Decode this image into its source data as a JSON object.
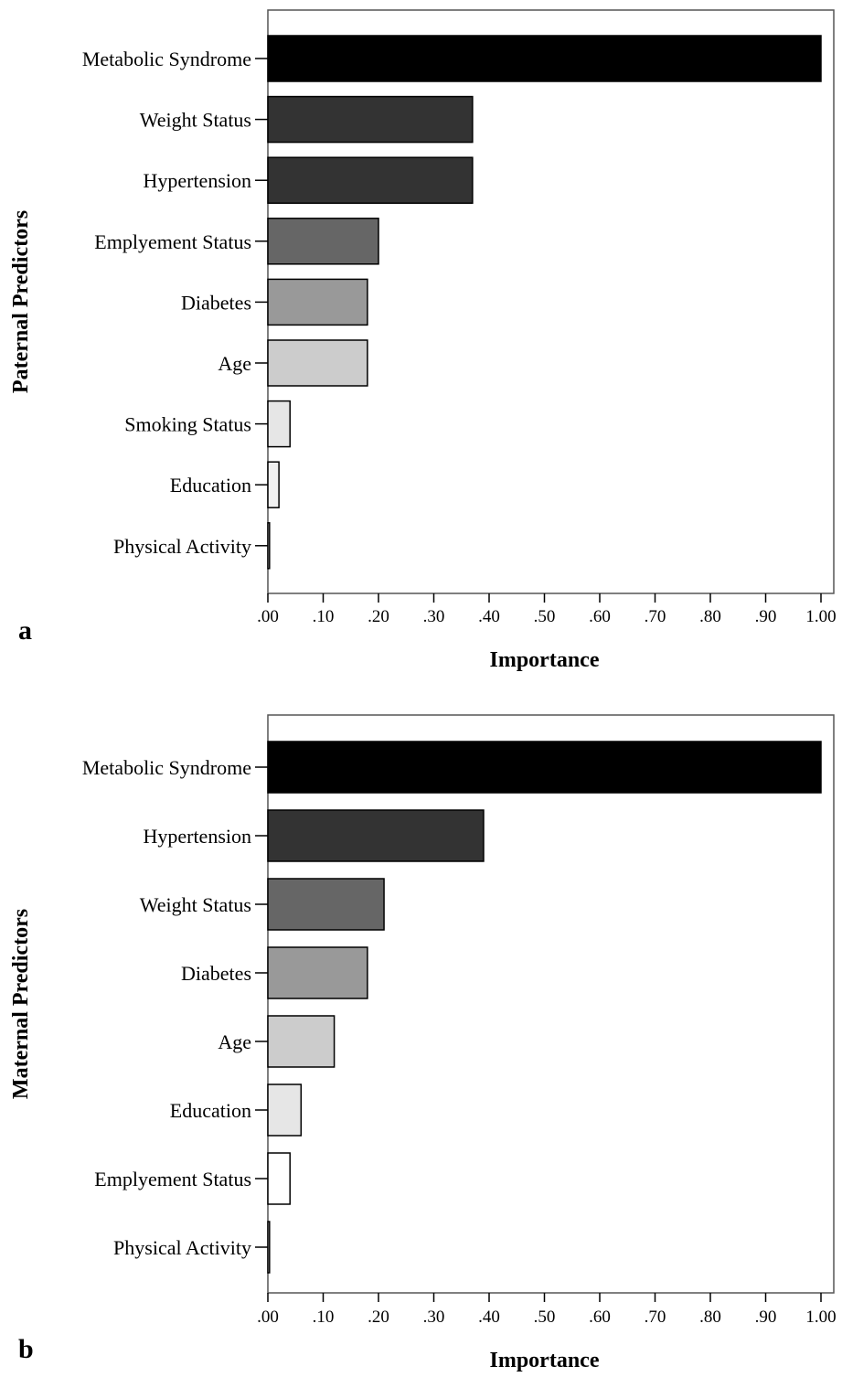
{
  "chart_data": [
    {
      "type": "bar",
      "orientation": "horizontal",
      "panel_label": "a",
      "xlabel": "Importance",
      "ylabel": "Paternal Predictors",
      "xlim": [
        0,
        1
      ],
      "tick_labels": [
        ".00",
        ".10",
        ".20",
        ".30",
        ".40",
        ".50",
        ".60",
        ".70",
        ".80",
        ".90",
        "1.00"
      ],
      "grid": false,
      "categories": [
        "Metabolic Syndrome",
        "Weight Status",
        "Hypertension",
        "Emplyement Status",
        "Diabetes",
        "Age",
        "Smoking Status",
        "Education",
        "Physical Activity"
      ],
      "values": [
        1.0,
        0.37,
        0.37,
        0.2,
        0.18,
        0.18,
        0.04,
        0.02,
        0.003
      ],
      "colors": [
        "#000000",
        "#333333",
        "#333333",
        "#666666",
        "#999999",
        "#cccccc",
        "#e6e6e6",
        "#f0f0f0",
        "#ffffff"
      ]
    },
    {
      "type": "bar",
      "orientation": "horizontal",
      "panel_label": "b",
      "xlabel": "Importance",
      "ylabel": "Maternal Predictors",
      "xlim": [
        0,
        1
      ],
      "tick_labels": [
        ".00",
        ".10",
        ".20",
        ".30",
        ".40",
        ".50",
        ".60",
        ".70",
        ".80",
        ".90",
        "1.00"
      ],
      "grid": false,
      "categories": [
        "Metabolic Syndrome",
        "Hypertension",
        "Weight Status",
        "Diabetes",
        "Age",
        "Education",
        "Emplyement Status",
        "Physical Activity"
      ],
      "values": [
        1.0,
        0.39,
        0.21,
        0.18,
        0.12,
        0.06,
        0.04,
        0.003
      ],
      "colors": [
        "#000000",
        "#333333",
        "#666666",
        "#999999",
        "#cccccc",
        "#e6e6e6",
        "#ffffff",
        "#ffffff"
      ]
    }
  ]
}
